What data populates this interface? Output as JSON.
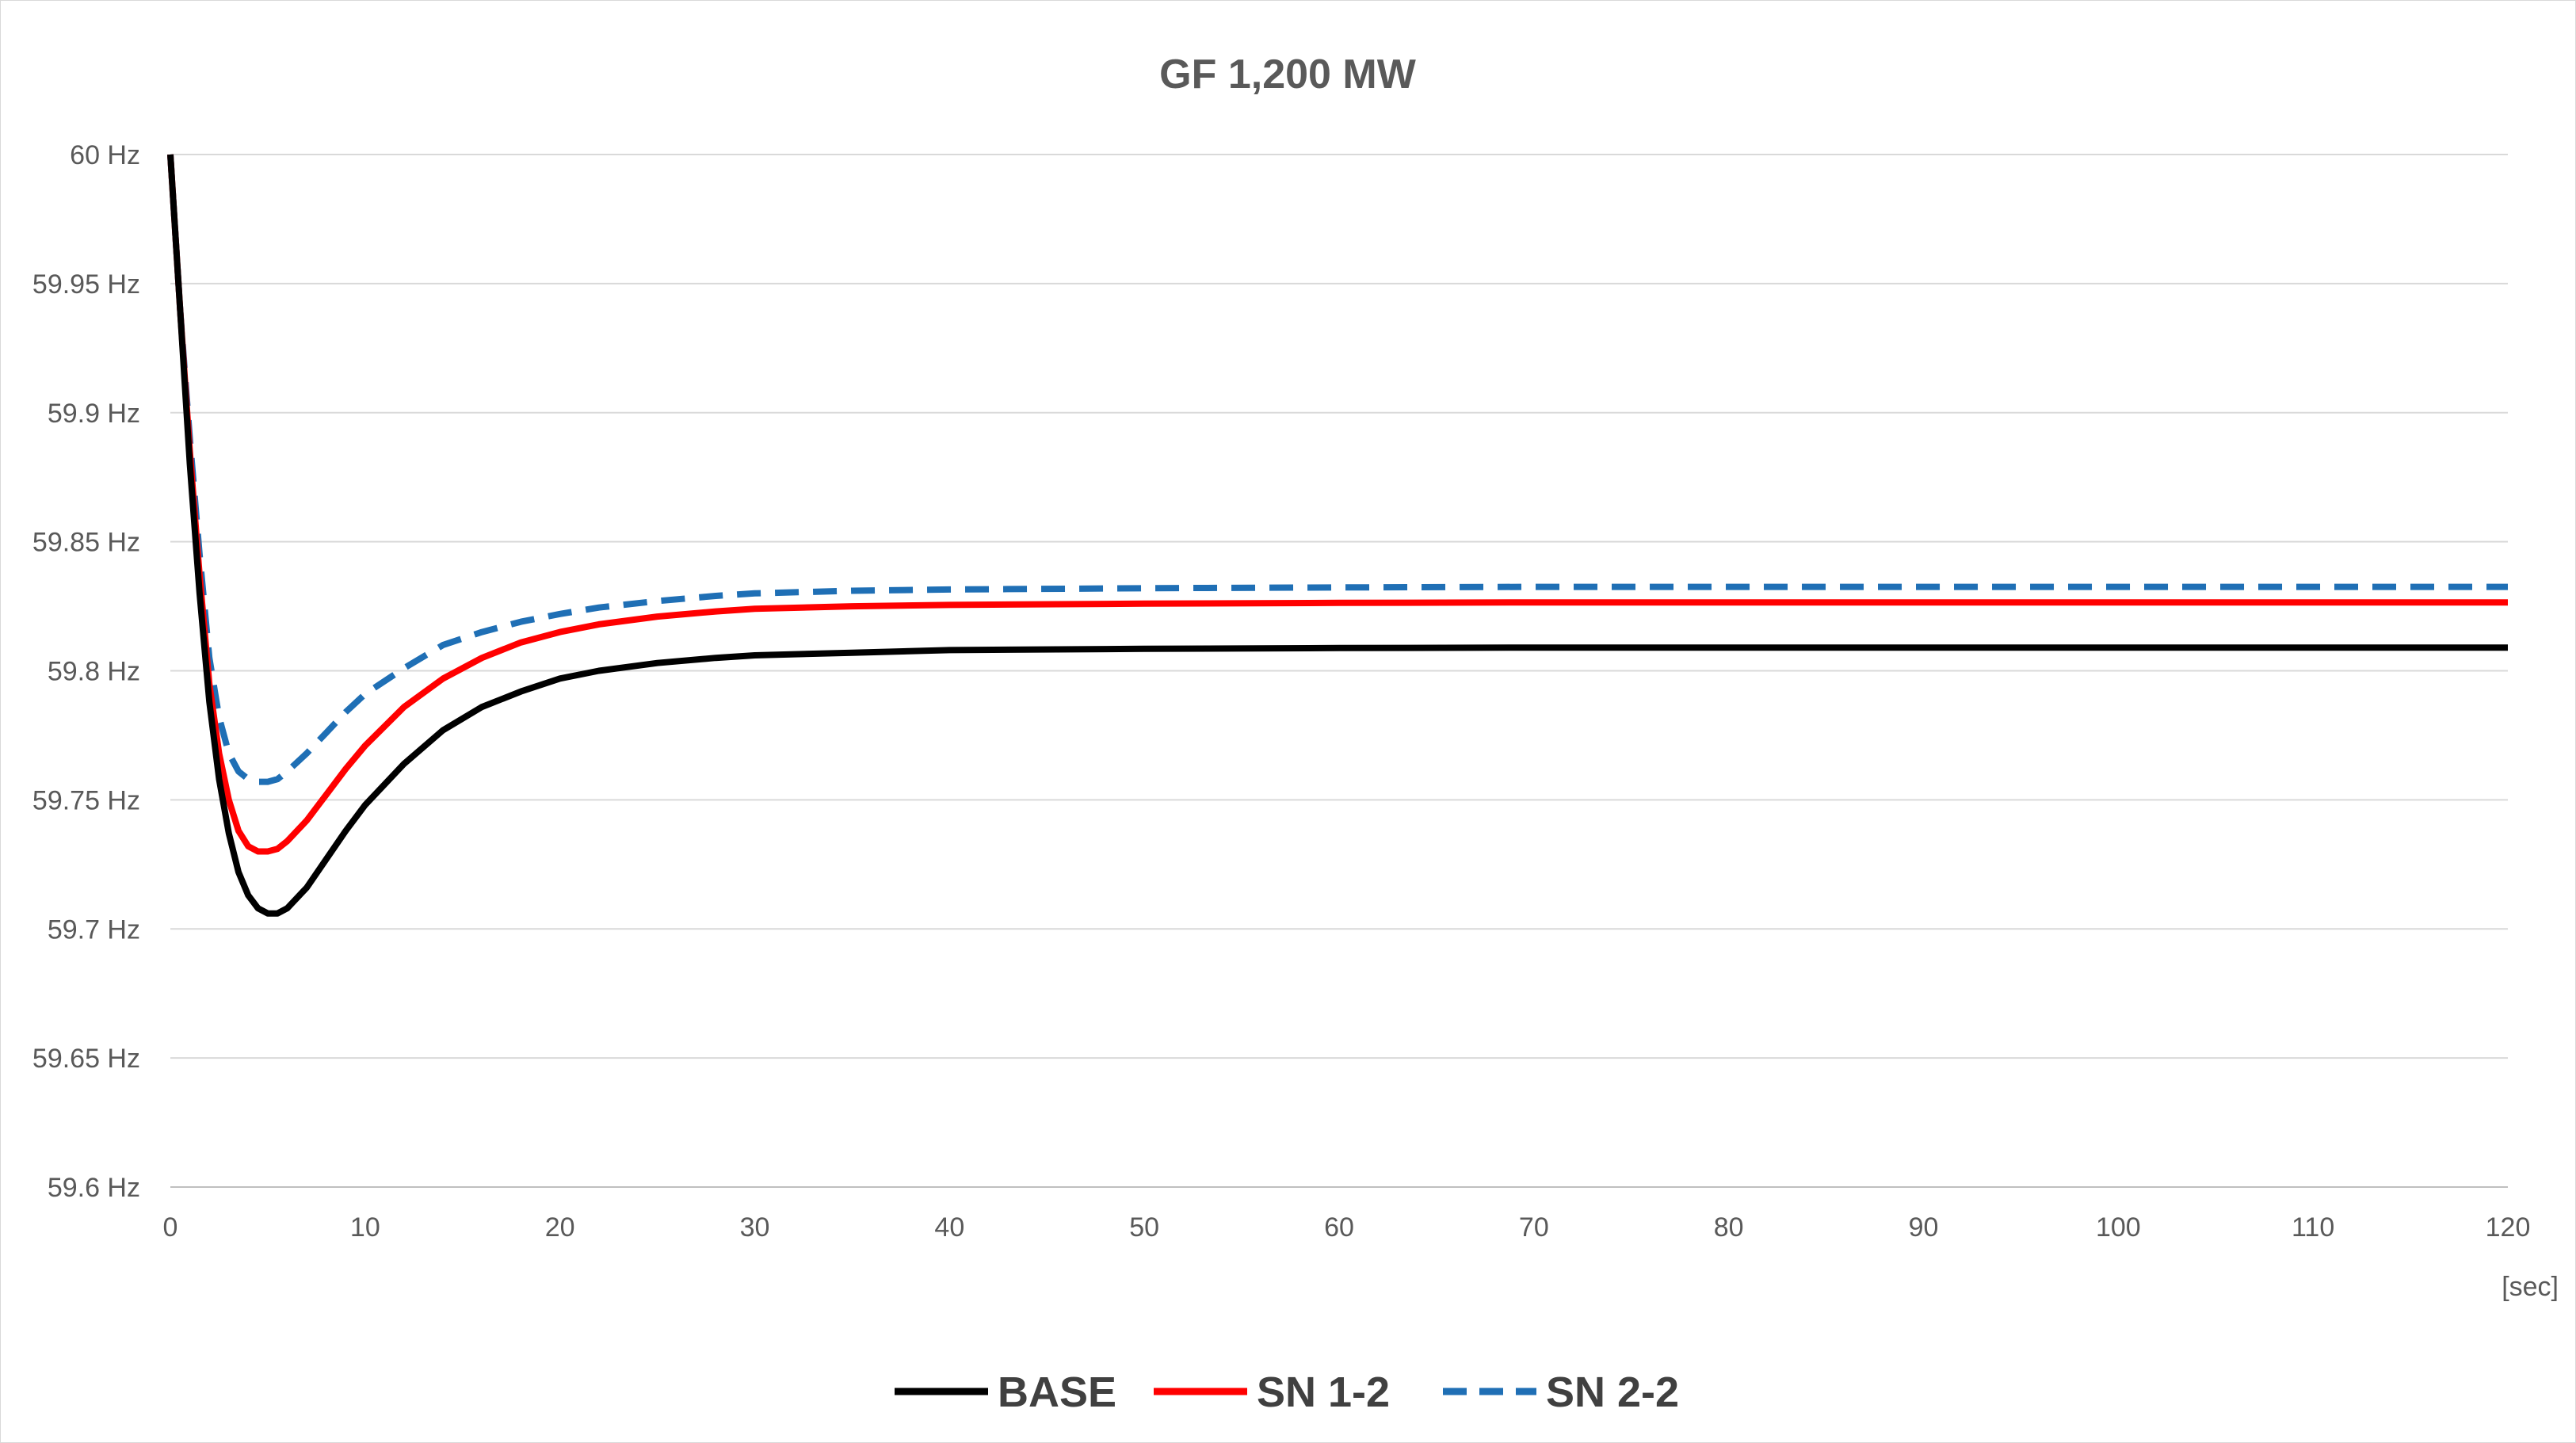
{
  "chart_data": {
    "type": "line",
    "title": "GF 1,200 MW",
    "xlabel": "[sec]",
    "ylabel": "",
    "xlim": [
      0,
      120
    ],
    "ylim": [
      59.6,
      60
    ],
    "x_ticks": [
      "0",
      "10",
      "20",
      "30",
      "40",
      "50",
      "60",
      "70",
      "80",
      "90",
      "100",
      "110",
      "120"
    ],
    "y_ticks": [
      "59.6 Hz",
      "59.65 Hz",
      "59.7 Hz",
      "59.75 Hz",
      "59.8 Hz",
      "59.85 Hz",
      "59.9 Hz",
      "59.95 Hz",
      "60 Hz"
    ],
    "grid": "horizontal",
    "legend": "bottom",
    "series": [
      {
        "name": "BASE",
        "color": "#000000",
        "dash": "solid",
        "x": [
          0,
          0.5,
          1,
          1.5,
          2,
          2.5,
          3,
          3.5,
          4,
          4.5,
          5,
          5.5,
          6,
          7,
          8,
          9,
          10,
          12,
          14,
          16,
          18,
          20,
          22,
          25,
          28,
          30,
          35,
          40,
          50,
          60,
          70,
          80,
          90,
          100,
          110,
          120
        ],
        "values": [
          60.0,
          59.94,
          59.88,
          59.83,
          59.788,
          59.758,
          59.737,
          59.722,
          59.713,
          59.708,
          59.706,
          59.706,
          59.708,
          59.716,
          59.727,
          59.738,
          59.748,
          59.764,
          59.777,
          59.786,
          59.792,
          59.797,
          59.8,
          59.803,
          59.805,
          59.806,
          59.807,
          59.808,
          59.8085,
          59.8088,
          59.809,
          59.809,
          59.809,
          59.809,
          59.809,
          59.809
        ]
      },
      {
        "name": "SN 1-2",
        "color": "#ff0000",
        "dash": "solid",
        "x": [
          0,
          0.5,
          1,
          1.5,
          2,
          2.5,
          3,
          3.5,
          4,
          4.5,
          5,
          5.5,
          6,
          7,
          8,
          9,
          10,
          12,
          14,
          16,
          18,
          20,
          22,
          25,
          28,
          30,
          35,
          40,
          50,
          60,
          70,
          80,
          90,
          100,
          110,
          120
        ],
        "values": [
          60.0,
          59.94,
          59.885,
          59.837,
          59.795,
          59.768,
          59.75,
          59.738,
          59.732,
          59.73,
          59.73,
          59.731,
          59.734,
          59.742,
          59.752,
          59.762,
          59.771,
          59.786,
          59.797,
          59.805,
          59.811,
          59.815,
          59.818,
          59.821,
          59.823,
          59.824,
          59.825,
          59.8255,
          59.826,
          59.8263,
          59.8265,
          59.8265,
          59.8265,
          59.8265,
          59.8265,
          59.8265
        ]
      },
      {
        "name": "SN 2-2",
        "color": "#1f6fb5",
        "dash": "dashed",
        "x": [
          0,
          0.5,
          1,
          1.5,
          2,
          2.5,
          3,
          3.5,
          4,
          4.5,
          5,
          5.5,
          6,
          7,
          8,
          9,
          10,
          12,
          14,
          16,
          18,
          20,
          22,
          25,
          28,
          30,
          35,
          40,
          50,
          60,
          70,
          80,
          90,
          100,
          110,
          120
        ],
        "values": [
          60.0,
          59.94,
          59.89,
          59.845,
          59.805,
          59.782,
          59.768,
          59.761,
          59.758,
          59.757,
          59.757,
          59.758,
          59.761,
          59.768,
          59.776,
          59.784,
          59.791,
          59.801,
          59.81,
          59.815,
          59.819,
          59.822,
          59.8245,
          59.827,
          59.829,
          59.83,
          59.831,
          59.8315,
          59.832,
          59.8323,
          59.8325,
          59.8325,
          59.8325,
          59.8325,
          59.8325,
          59.8325
        ]
      }
    ]
  }
}
